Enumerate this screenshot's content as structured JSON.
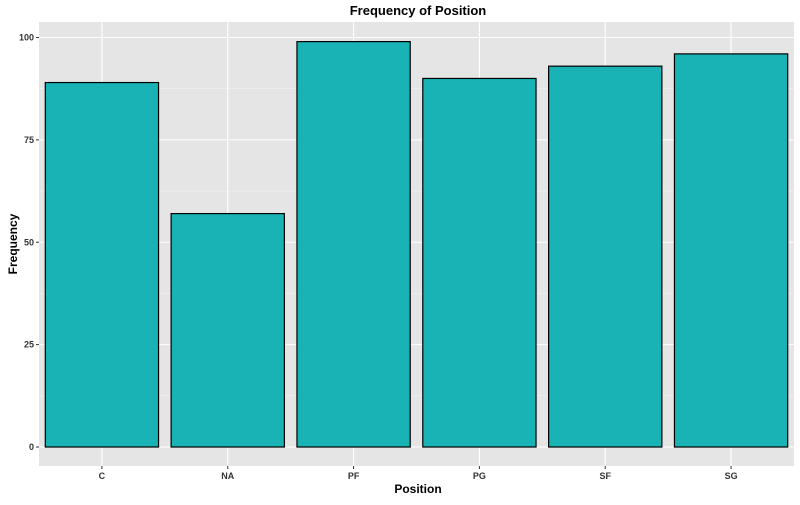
{
  "chart_data": {
    "type": "bar",
    "title": "Frequency of Position",
    "xlabel": "Position",
    "ylabel": "Frequency",
    "categories": [
      "C",
      "NA",
      "PF",
      "PG",
      "SF",
      "SG"
    ],
    "values": [
      89,
      57,
      99,
      90,
      93,
      96
    ],
    "ylim": [
      0,
      104
    ],
    "yticks": [
      0,
      25,
      50,
      75,
      100
    ],
    "grid": true,
    "legend": "none",
    "colors": {
      "bar_fill": "#19B3B6",
      "bar_stroke": "#000000",
      "panel_background": "#E5E5E5",
      "grid_major": "#FFFFFF",
      "grid_minor": "#F2F2F2",
      "tick_label": "#333333"
    }
  }
}
